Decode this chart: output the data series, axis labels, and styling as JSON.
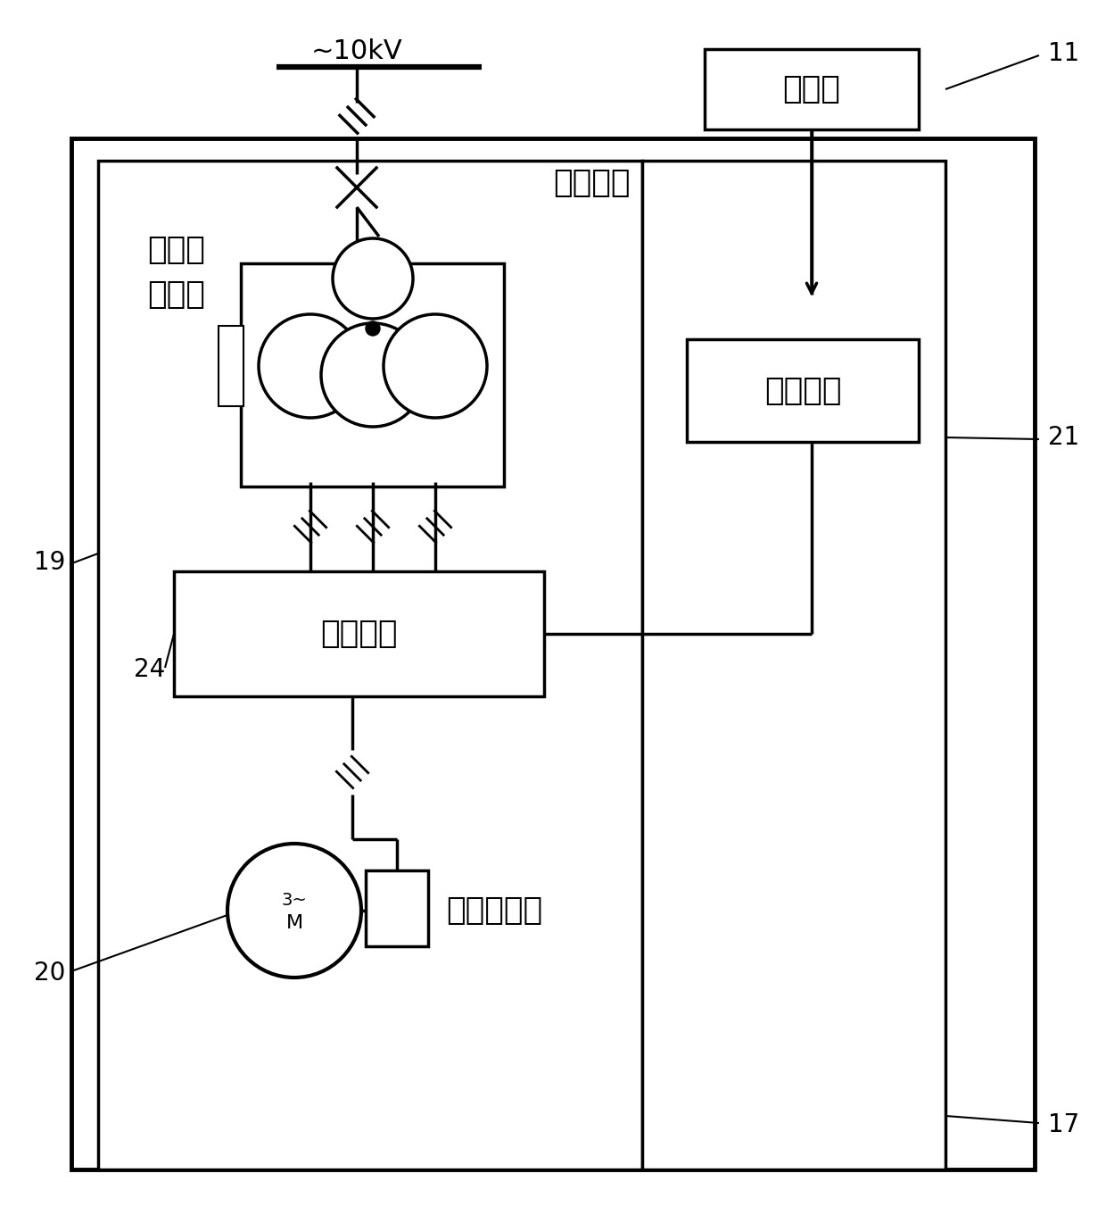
{
  "bg_color": "#ffffff",
  "lw_thick": 3.5,
  "lw_med": 2.5,
  "lw_thin": 1.5,
  "labels": {
    "voltage": "~10kV",
    "remote": "远控台",
    "vehicle": "车载部分",
    "container1": "一体化",
    "container2": "集装箱",
    "rectifier": "整流单元",
    "vfd": "变频一体机",
    "control": "控制组件",
    "n11": "11",
    "n17": "17",
    "n19": "19",
    "n20": "20",
    "n21": "21",
    "n24": "24"
  },
  "fontsize_large": 26,
  "fontsize_med": 20,
  "fontsize_small": 14
}
